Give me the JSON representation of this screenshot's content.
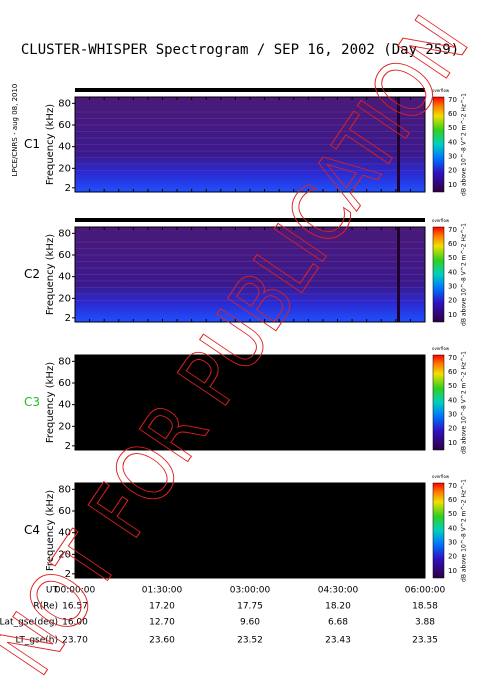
{
  "title": "CLUSTER-WHISPER Spectrogram / SEP 16, 2002 (Day 259)",
  "side_note": "LPCE/CNRS - aug 08, 2010",
  "watermark": "NOT FOR PUBLICATION",
  "y_axis_label": "Frequency (kHz)",
  "colorbar_label": "dB above 10^-8 V^2 m^-2 Hz^-1",
  "colorbar_top": "overflow",
  "frequency_ticks": [
    80,
    60,
    40,
    20,
    2
  ],
  "colorbar_ticks": [
    70,
    60,
    50,
    40,
    30,
    20,
    10
  ],
  "panels": [
    {
      "label": "C1",
      "label_color": "#000000",
      "has_data": true
    },
    {
      "label": "C2",
      "label_color": "#000000",
      "has_data": true
    },
    {
      "label": "C3",
      "label_color": "#22bb22",
      "has_data": false
    },
    {
      "label": "C4",
      "label_color": "#000000",
      "has_data": false
    }
  ],
  "table": {
    "row_labels": [
      "UT",
      "R(Re)",
      "Lat_gse(deg)",
      "LT_gse(h)"
    ],
    "rows": [
      [
        "00:00:00",
        "01:30:00",
        "03:00:00",
        "04:30:00",
        "06:00:00"
      ],
      [
        "16.57",
        "17.20",
        "17.75",
        "18.20",
        "18.58"
      ],
      [
        "16.00",
        "12.70",
        "9.60",
        "6.68",
        "3.88"
      ],
      [
        "23.70",
        "23.60",
        "23.52",
        "23.43",
        "23.35"
      ]
    ]
  }
}
